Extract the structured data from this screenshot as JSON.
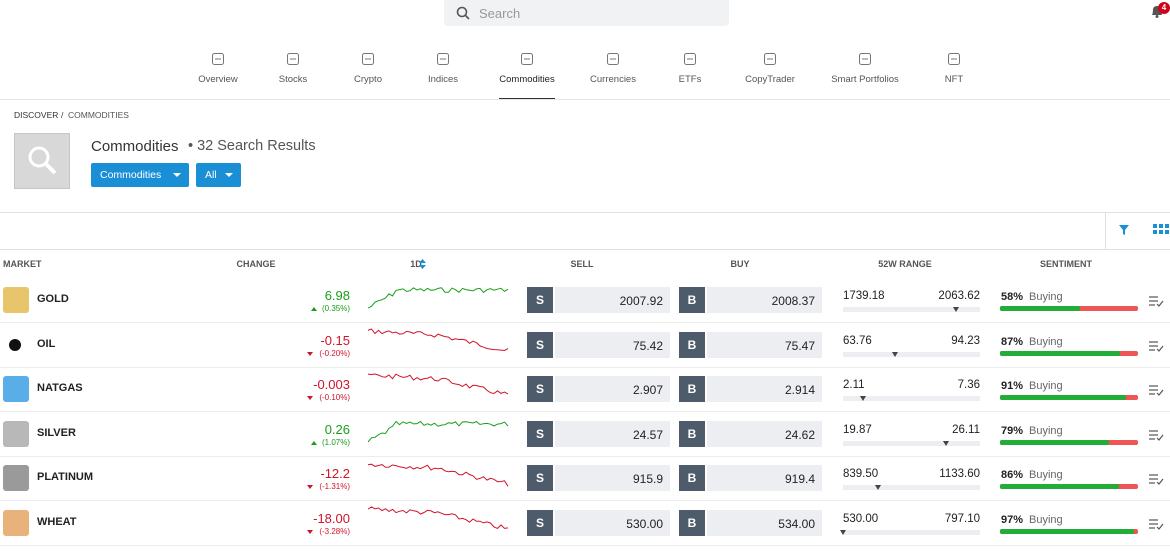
{
  "search_placeholder": "Search",
  "notification_count": "4",
  "nav": [
    "Overview",
    "Stocks",
    "Crypto",
    "Indices",
    "Commodities",
    "Currencies",
    "ETFs",
    "CopyTrader",
    "Smart Portfolios",
    "NFT"
  ],
  "active_nav": 4,
  "breadcrumb": [
    "DISCOVER",
    "COMMODITIES"
  ],
  "breadcrumb_separator": "/",
  "heading": {
    "title": "Commodities",
    "results": "• 32 Search Results"
  },
  "filters": [
    "Commodities",
    "All"
  ],
  "table": {
    "columns": [
      "MARKET",
      "CHANGE",
      "1D",
      "SELL",
      "BUY",
      "52W RANGE",
      "SENTIMENT"
    ],
    "sell_button": "S",
    "buy_button": "B",
    "rows": [
      {
        "market": "GOLD",
        "change": "6.98",
        "change_pct": "(0.35%)",
        "direction": "up",
        "sell": "2007.92",
        "buy": "2008.37",
        "low": "1739.18",
        "high": "2063.62",
        "sentiment": "58%",
        "sentiment_label": "Buying",
        "icon_color": "#e8c46a"
      },
      {
        "market": "OIL",
        "change": "-0.15",
        "change_pct": "(-0.20%)",
        "direction": "down",
        "sell": "75.42",
        "buy": "75.47",
        "low": "63.76",
        "high": "94.23",
        "sentiment": "87%",
        "sentiment_label": "Buying",
        "icon_color": "#111111"
      },
      {
        "market": "NATGAS",
        "change": "-0.003",
        "change_pct": "(-0.10%)",
        "direction": "down",
        "sell": "2.907",
        "buy": "2.914",
        "low": "2.11",
        "high": "7.36",
        "sentiment": "91%",
        "sentiment_label": "Buying",
        "icon_color": "#5aaee8"
      },
      {
        "market": "SILVER",
        "change": "0.26",
        "change_pct": "(1.07%)",
        "direction": "up",
        "sell": "24.57",
        "buy": "24.62",
        "low": "19.87",
        "high": "26.11",
        "sentiment": "79%",
        "sentiment_label": "Buying",
        "icon_color": "#b8b8b8"
      },
      {
        "market": "PLATINUM",
        "change": "-12.2",
        "change_pct": "(-1.31%)",
        "direction": "down",
        "sell": "915.9",
        "buy": "919.4",
        "low": "839.50",
        "high": "1133.60",
        "sentiment": "86%",
        "sentiment_label": "Buying",
        "icon_color": "#9a9a9a"
      },
      {
        "market": "WHEAT",
        "change": "-18.00",
        "change_pct": "(-3.28%)",
        "direction": "down",
        "sell": "530.00",
        "buy": "534.00",
        "low": "530.00",
        "high": "797.10",
        "sentiment": "97%",
        "sentiment_label": "Buying",
        "icon_color": "#e9b27a"
      }
    ]
  }
}
